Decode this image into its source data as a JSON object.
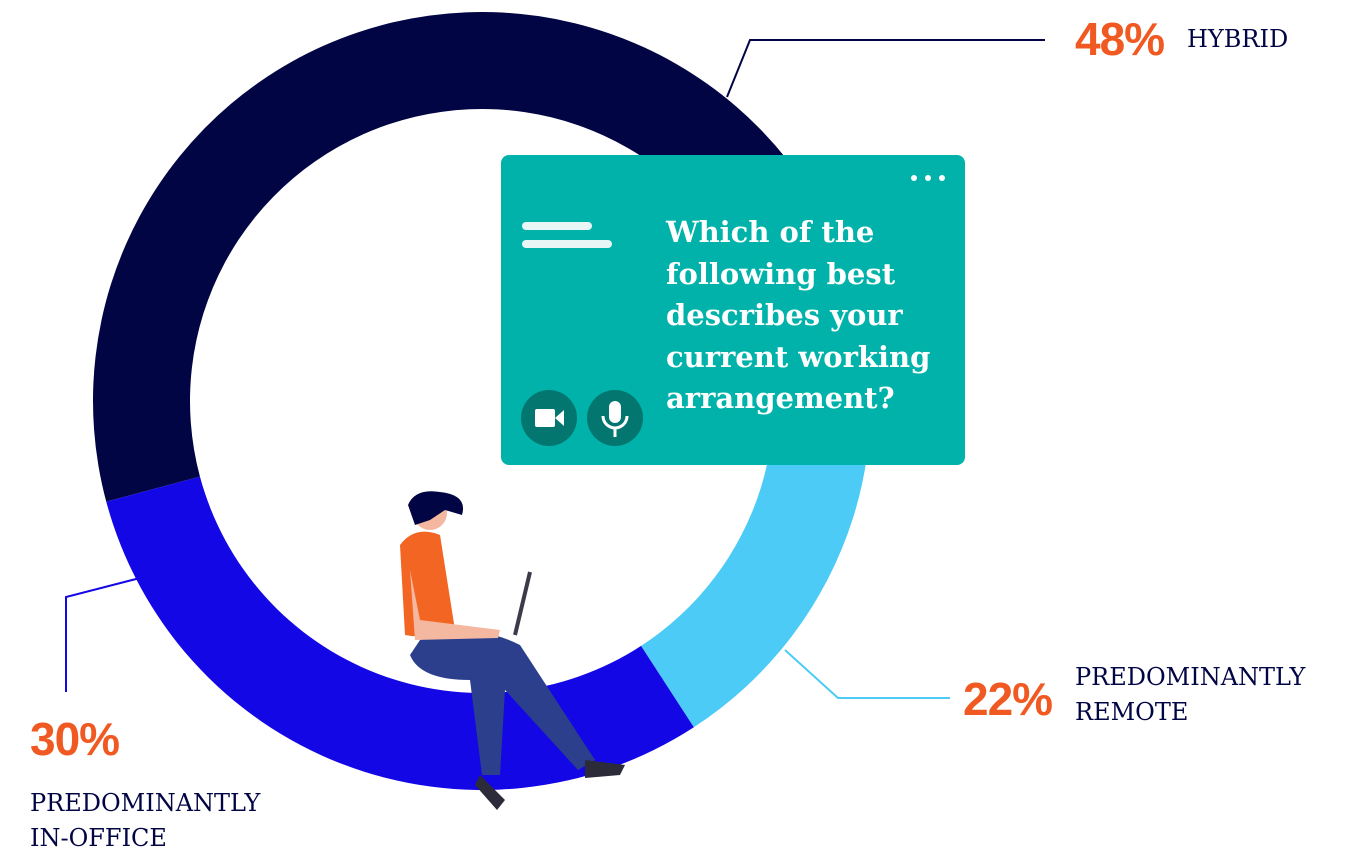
{
  "chart_data": {
    "type": "donut",
    "title": "Which of the following best describes your current working arrangement?",
    "categories": [
      "HYBRID",
      "PREDOMINANTLY REMOTE",
      "PREDOMINANTLY IN-OFFICE"
    ],
    "values": [
      48,
      22,
      30
    ],
    "value_labels": [
      "48%",
      "22%",
      "30%"
    ],
    "colors": [
      "#020544",
      "#4ccbf7",
      "#1407e6"
    ]
  }
}
